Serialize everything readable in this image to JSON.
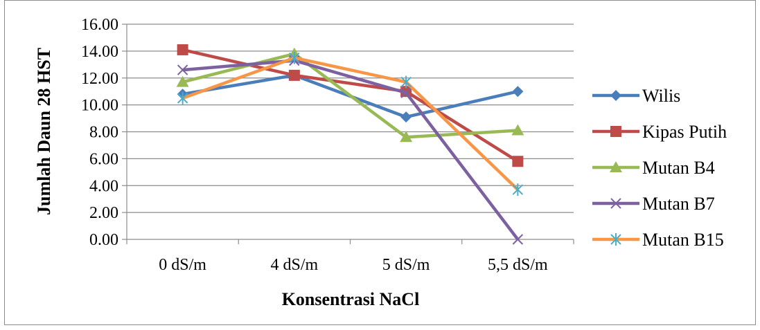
{
  "chart_data": {
    "type": "line",
    "xlabel": "Konsentrasi NaCl",
    "ylabel": "Jumlah Daun 28 HST",
    "categories": [
      "0 dS/m",
      "4 dS/m",
      "5 dS/m",
      "5,5 dS/m"
    ],
    "ylim": [
      0,
      16
    ],
    "y_ticks": [
      "0.00",
      "2.00",
      "4.00",
      "6.00",
      "8.00",
      "10.00",
      "12.00",
      "14.00",
      "16.00"
    ],
    "grid": true,
    "legend": "right",
    "series": [
      {
        "name": "Wilis",
        "values": [
          10.8,
          12.2,
          9.1,
          11.0
        ],
        "color": "#4a7ebb",
        "marker": "diamond"
      },
      {
        "name": "Kipas Putih",
        "values": [
          14.1,
          12.2,
          11.0,
          5.8
        ],
        "color": "#be4b48",
        "marker": "square"
      },
      {
        "name": "Mutan B4",
        "values": [
          11.7,
          13.8,
          7.6,
          8.1
        ],
        "color": "#98b954",
        "marker": "triangle"
      },
      {
        "name": "Mutan B7",
        "values": [
          12.6,
          13.3,
          10.9,
          0.0
        ],
        "color": "#7d60a0",
        "marker": "x"
      },
      {
        "name": "Mutan B15",
        "values": [
          10.5,
          13.5,
          11.7,
          3.7
        ],
        "color": "#f79646",
        "marker": "star",
        "marker_color": "#4bacc6"
      }
    ]
  }
}
